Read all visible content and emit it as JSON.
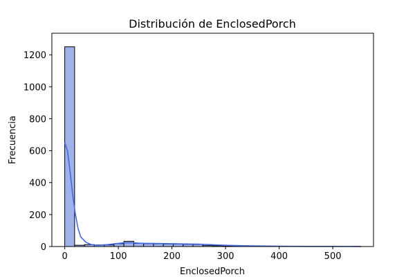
{
  "chart_data": {
    "type": "bar",
    "title": "Distribución de EnclosedPorch",
    "xlabel": "EnclosedPorch",
    "ylabel": "Frecuencia",
    "xlim": [
      -24,
      576
    ],
    "ylim": [
      0,
      1335
    ],
    "xticks": [
      0,
      100,
      200,
      300,
      400,
      500
    ],
    "yticks": [
      0,
      200,
      400,
      600,
      800,
      1000,
      1200
    ],
    "bin_width": 18.4,
    "bins": [
      {
        "x0": 0,
        "x1": 18.4,
        "count": 1250
      },
      {
        "x0": 18.4,
        "x1": 36.8,
        "count": 8
      },
      {
        "x0": 36.8,
        "x1": 55.2,
        "count": 12
      },
      {
        "x0": 55.2,
        "x1": 73.6,
        "count": 10
      },
      {
        "x0": 73.6,
        "x1": 92.0,
        "count": 10
      },
      {
        "x0": 92.0,
        "x1": 110.4,
        "count": 18
      },
      {
        "x0": 110.4,
        "x1": 128.8,
        "count": 33
      },
      {
        "x0": 128.8,
        "x1": 147.2,
        "count": 20
      },
      {
        "x0": 147.2,
        "x1": 165.6,
        "count": 18
      },
      {
        "x0": 165.6,
        "x1": 184.0,
        "count": 17
      },
      {
        "x0": 184.0,
        "x1": 202.4,
        "count": 16
      },
      {
        "x0": 202.4,
        "x1": 220.8,
        "count": 15
      },
      {
        "x0": 220.8,
        "x1": 239.2,
        "count": 14
      },
      {
        "x0": 239.2,
        "x1": 257.6,
        "count": 13
      },
      {
        "x0": 257.6,
        "x1": 276.0,
        "count": 6
      },
      {
        "x0": 276.0,
        "x1": 294.4,
        "count": 5
      },
      {
        "x0": 294.4,
        "x1": 312.8,
        "count": 3
      },
      {
        "x0": 312.8,
        "x1": 331.2,
        "count": 2
      },
      {
        "x0": 331.2,
        "x1": 349.6,
        "count": 1
      },
      {
        "x0": 349.6,
        "x1": 368.0,
        "count": 1
      },
      {
        "x0": 368.0,
        "x1": 386.4,
        "count": 1
      },
      {
        "x0": 386.4,
        "x1": 404.8,
        "count": 0
      },
      {
        "x0": 404.8,
        "x1": 423.2,
        "count": 0
      },
      {
        "x0": 423.2,
        "x1": 441.6,
        "count": 0
      },
      {
        "x0": 441.6,
        "x1": 460.0,
        "count": 0
      },
      {
        "x0": 460.0,
        "x1": 478.4,
        "count": 0
      },
      {
        "x0": 478.4,
        "x1": 496.8,
        "count": 0
      },
      {
        "x0": 496.8,
        "x1": 515.2,
        "count": 0
      },
      {
        "x0": 515.2,
        "x1": 533.6,
        "count": 0
      },
      {
        "x0": 533.6,
        "x1": 552.0,
        "count": 1
      }
    ],
    "kde": {
      "x": [
        0,
        5,
        10,
        15,
        20,
        25,
        30,
        40,
        50,
        60,
        70,
        80,
        90,
        100,
        110,
        120,
        130,
        140,
        150,
        170,
        190,
        210,
        230,
        250,
        270,
        290,
        310,
        350,
        400,
        450,
        500,
        552
      ],
      "y": [
        650,
        600,
        470,
        320,
        200,
        110,
        60,
        25,
        12,
        8,
        10,
        12,
        16,
        20,
        23,
        24,
        23,
        21,
        20,
        19,
        18,
        17,
        16,
        15,
        12,
        9,
        7,
        4,
        2,
        1,
        1,
        0.5
      ]
    },
    "colors": {
      "bar_fill": "#a1b1ea",
      "bar_edge": "#000000",
      "kde_line": "#4169e1"
    },
    "grid": false,
    "legend": "none"
  }
}
